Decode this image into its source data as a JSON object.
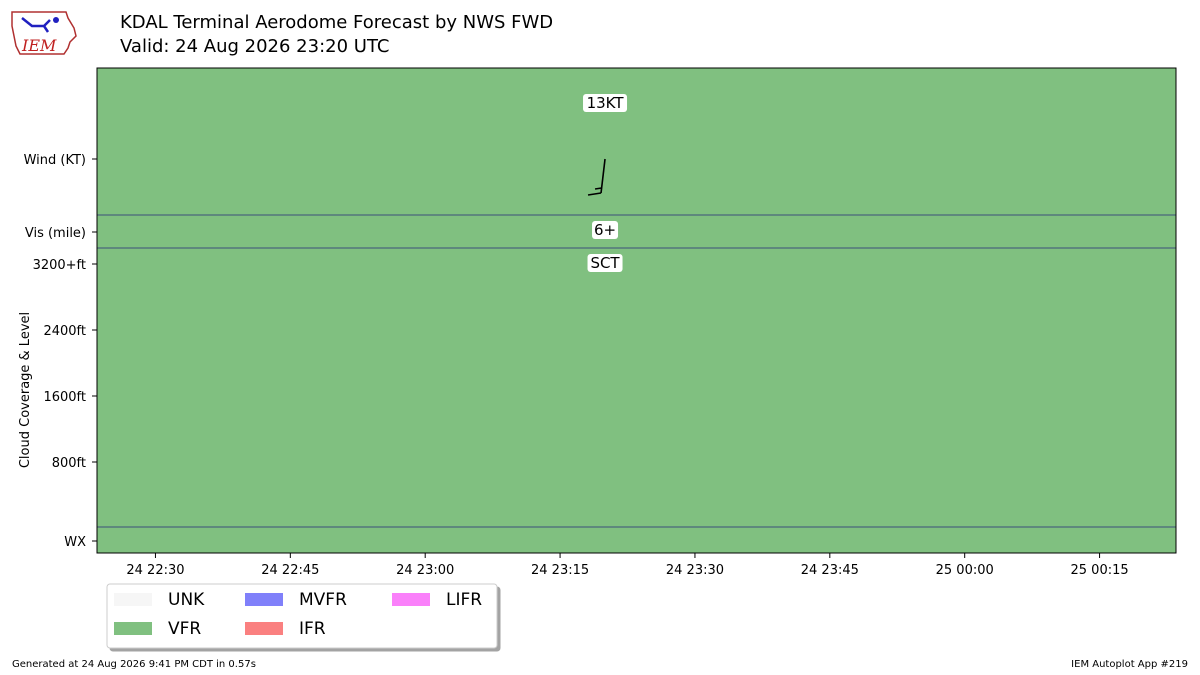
{
  "header": {
    "logo_text": "IEM",
    "title": "KDAL Terminal Aerodome Forecast by NWS FWD",
    "subtitle": "Valid: 24 Aug 2026 23:20 UTC"
  },
  "chart_data": {
    "type": "timeline",
    "x_ticks": [
      "24 22:30",
      "24 22:45",
      "24 23:00",
      "24 23:15",
      "24 23:30",
      "24 23:45",
      "25 00:00",
      "25 00:15"
    ],
    "x_tick_minutes_after_2230": [
      0,
      15,
      30,
      45,
      60,
      75,
      90,
      105
    ],
    "x_range_minutes_after_2230": [
      -6.5,
      113.5
    ],
    "y_rows": {
      "wind": "Wind (KT)",
      "vis": "Vis (mile)",
      "cloud_label": "Cloud Coverage & Level",
      "cloud_ticks": [
        "3200+ft",
        "2400ft",
        "1600ft",
        "800ft"
      ],
      "cloud_tick_values_ft": [
        3200,
        2400,
        1600,
        800
      ],
      "wx": "WX"
    },
    "flight_category": "VFR",
    "forecast": {
      "time": "24 23:20",
      "time_minutes_after_2230": 50,
      "wind_label": "13KT",
      "wind_speed_kt": 13,
      "wind_direction_deg": 190,
      "visibility_label": "6+",
      "cloud_label": "SCT",
      "cloud_level_ft": 3200
    },
    "legend": {
      "placement": "bottom-left",
      "items": [
        {
          "label": "UNK",
          "color": "#f6f6f6"
        },
        {
          "label": "MVFR",
          "color": "#8080fa"
        },
        {
          "label": "LIFR",
          "color": "#fa80fa"
        },
        {
          "label": "VFR",
          "color": "#80c080"
        },
        {
          "label": "IFR",
          "color": "#fa8080"
        }
      ]
    }
  },
  "footer": {
    "generated": "Generated at 24 Aug 2026 9:41 PM CDT in 0.57s",
    "app": "IEM Autoplot App #219"
  }
}
